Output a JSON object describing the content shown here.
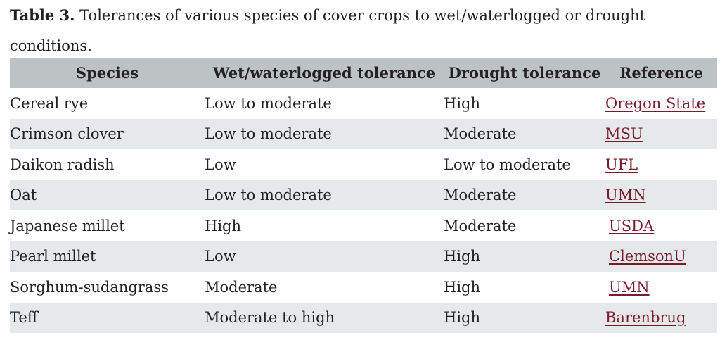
{
  "caption": {
    "label": "Table 3.",
    "text": "Tolerances of various species of cover crops to wet/waterlogged or drought conditions."
  },
  "table": {
    "headers": {
      "species": "Species",
      "wet": "Wet/waterlogged tolerance",
      "drought": "Drought tolerance",
      "reference": "Reference"
    },
    "rows": [
      {
        "species": "Cereal rye",
        "wet": "Low to moderate",
        "drought": "High",
        "reference": "Oregon State"
      },
      {
        "species": "Crimson clover",
        "wet": "Low to moderate",
        "drought": "Moderate",
        "reference": "MSU"
      },
      {
        "species": "Daikon radish",
        "wet": "Low",
        "drought": "Low to moderate",
        "reference": "UFL"
      },
      {
        "species": "Oat",
        "wet": "Low to moderate",
        "drought": "Moderate",
        "reference": "UMN"
      },
      {
        "species": "Japanese millet",
        "wet": "High",
        "drought": "Moderate",
        "reference": "USDA"
      },
      {
        "species": "Pearl millet",
        "wet": "Low",
        "drought": "High",
        "reference": "ClemsonU"
      },
      {
        "species": "Sorghum-sudangrass",
        "wet": "Moderate",
        "drought": "High",
        "reference": "UMN"
      },
      {
        "species": "Teff",
        "wet": "Moderate to high",
        "drought": "High",
        "reference": "Barenbrug"
      }
    ]
  },
  "colors": {
    "header_bg": "#bdc3c5",
    "stripe_bg": "#e6e9ea",
    "link": "#7a1b2c"
  }
}
